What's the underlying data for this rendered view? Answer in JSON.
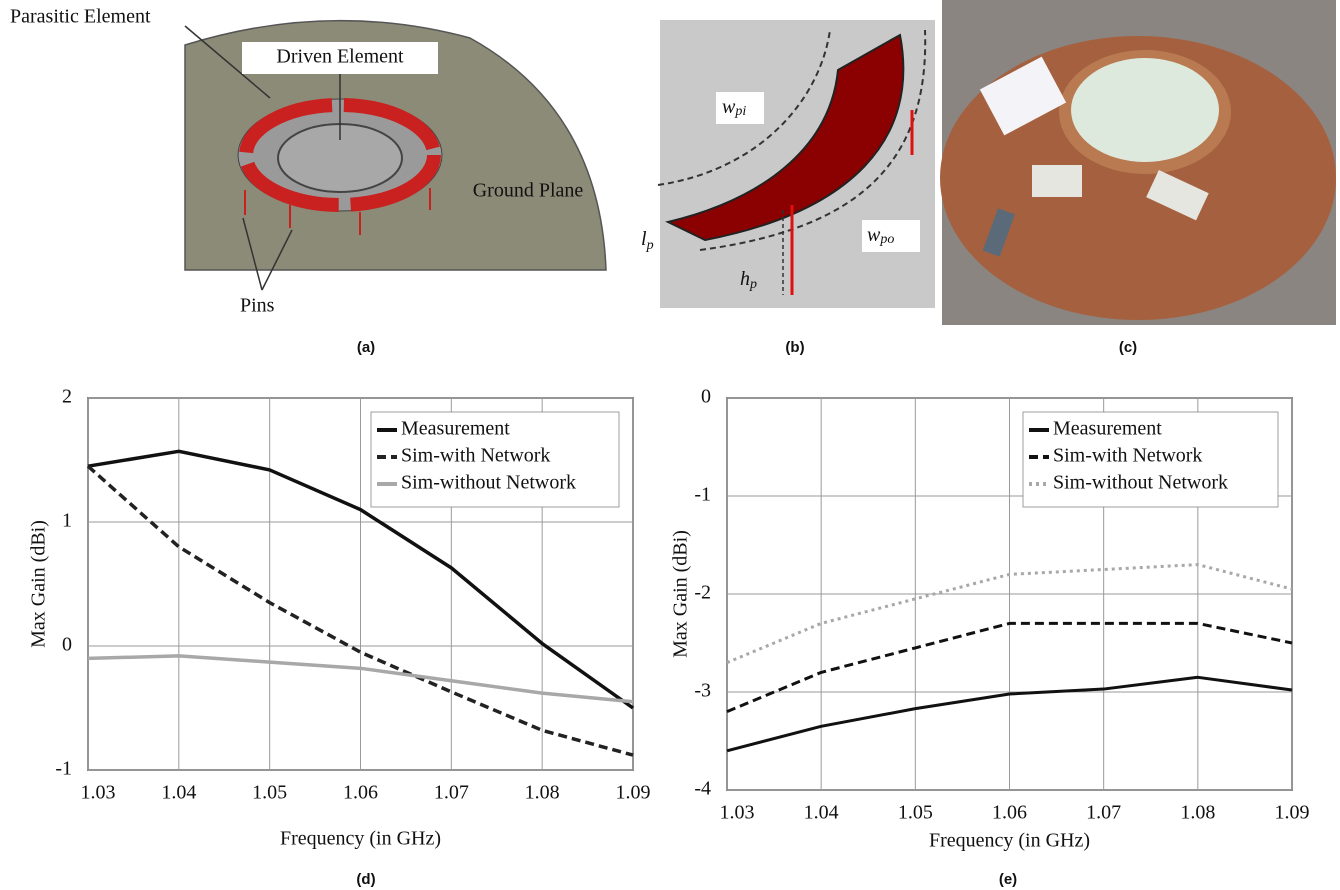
{
  "figures": {
    "a": {
      "parasitic": "Parasitic Element",
      "driven": "Driven Element",
      "ground": "Ground Plane",
      "pins": "Pins"
    },
    "b": {
      "wpi": {
        "main": "w",
        "sub": "pi"
      },
      "lp": {
        "main": "l",
        "sub": "p"
      },
      "hp": {
        "main": "h",
        "sub": "p"
      },
      "wpo": {
        "main": "w",
        "sub": "po"
      }
    }
  },
  "panel_labels": [
    "(a)",
    "(b)",
    "(c)",
    "(d)",
    "(e)"
  ],
  "chart_data": [
    {
      "type": "line",
      "xlabel": "Frequency (in GHz)",
      "ylabel": "Max Gain (dBi)",
      "x": [
        1.03,
        1.04,
        1.05,
        1.06,
        1.07,
        1.08,
        1.09
      ],
      "xlim": [
        1.03,
        1.09
      ],
      "xticks": [
        1.03,
        1.04,
        1.05,
        1.06,
        1.07,
        1.08,
        1.09
      ],
      "ylim": [
        -1,
        2
      ],
      "yticks": [
        -1,
        0,
        1,
        2
      ],
      "grid": true,
      "legend": "upper right",
      "series": [
        {
          "name": "Measurement",
          "color": "#111111",
          "dash": "solid",
          "values": [
            1.45,
            1.57,
            1.42,
            1.1,
            0.63,
            0.02,
            -0.5
          ]
        },
        {
          "name": "Sim-with Network",
          "color": "#222222",
          "dash": "dashed",
          "values": [
            1.45,
            0.8,
            0.35,
            -0.05,
            -0.37,
            -0.68,
            -0.88
          ]
        },
        {
          "name": "Sim-without Network",
          "color": "#a8a8a8",
          "dash": "solid",
          "values": [
            -0.1,
            -0.08,
            -0.13,
            -0.18,
            -0.28,
            -0.38,
            -0.45
          ]
        }
      ]
    },
    {
      "type": "line",
      "xlabel": "Frequency (in GHz)",
      "ylabel": "Max Gain (dBi)",
      "x": [
        1.03,
        1.04,
        1.05,
        1.06,
        1.07,
        1.08,
        1.09
      ],
      "xlim": [
        1.03,
        1.09
      ],
      "xticks": [
        1.03,
        1.04,
        1.05,
        1.06,
        1.07,
        1.08,
        1.09
      ],
      "ylim": [
        -4,
        0
      ],
      "yticks": [
        -4,
        -3,
        -2,
        -1,
        0
      ],
      "grid": true,
      "legend": "upper right",
      "series": [
        {
          "name": "Measurement",
          "color": "#111111",
          "dash": "solid",
          "values": [
            -3.6,
            -3.35,
            -3.17,
            -3.02,
            -2.97,
            -2.85,
            -2.98
          ]
        },
        {
          "name": "Sim-with Network",
          "color": "#111111",
          "dash": "dashed",
          "values": [
            -3.2,
            -2.8,
            -2.55,
            -2.3,
            -2.3,
            -2.3,
            -2.5
          ]
        },
        {
          "name": "Sim-without Network",
          "color": "#a8a8a8",
          "dash": "dotted",
          "values": [
            -2.7,
            -2.3,
            -2.05,
            -1.8,
            -1.75,
            -1.7,
            -1.95
          ]
        }
      ]
    }
  ]
}
